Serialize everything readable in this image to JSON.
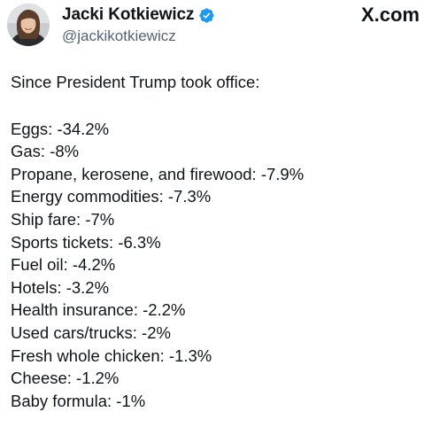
{
  "author": {
    "display_name": "Jacki Kotkiewicz",
    "handle": "@jackikotkiewicz",
    "verified": true,
    "verified_color": "#1d9bf0"
  },
  "brand": {
    "site_label": "X.com"
  },
  "tweet": {
    "intro": "Since President Trump took office:",
    "items": [
      "Eggs: -34.2%",
      "Gas: -8%",
      "Propane, kerosene, and firewood: -7.9%",
      "Energy commodities: -7.3%",
      "Ship fare: -7%",
      "Sports tickets: -6.3%",
      "Fuel oil: -4.2%",
      "Hotels: -3.2%",
      "Health insurance: -2.2%",
      "Used cars/trucks: -2%",
      "Fresh whole chicken: -1.3%",
      "Cheese: -1.2%",
      "Baby formula: -1%"
    ]
  },
  "colors": {
    "text": "#0f1419",
    "secondary_text": "#536471",
    "background": "#ffffff"
  }
}
